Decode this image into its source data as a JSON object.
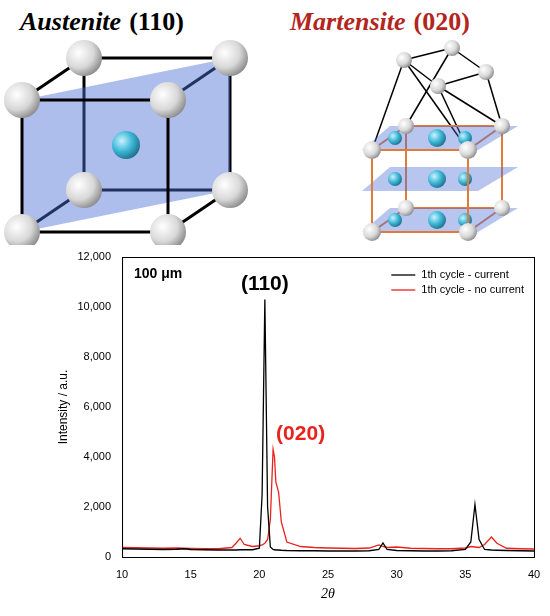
{
  "diagrams": [
    {
      "title": "Austenite",
      "plane": "(110)"
    },
    {
      "title": "Martensite",
      "plane": "(020)"
    }
  ],
  "chart_data": {
    "type": "line",
    "xlabel": "2θ",
    "ylabel": "Intensity / a.u.",
    "annotations": [
      "100 μm",
      "(110)",
      "(020)"
    ],
    "x": [
      10,
      11,
      12,
      13,
      14,
      14.5,
      15,
      16,
      17,
      18,
      18.3,
      18.6,
      18.9,
      19.5,
      20,
      20.2,
      20.4,
      20.6,
      20.8,
      21.0,
      21.1,
      21.2,
      21.4,
      21.6,
      22,
      23,
      24,
      25,
      26,
      27,
      28,
      28.7,
      29,
      29.3,
      30,
      31,
      32,
      33,
      34,
      35,
      35.4,
      35.7,
      36,
      36.4,
      36.9,
      37.3,
      38,
      39,
      40
    ],
    "series": [
      {
        "name": "1th cycle - current",
        "color": "#000000",
        "values": [
          330,
          320,
          310,
          300,
          310,
          330,
          300,
          290,
          280,
          280,
          280,
          290,
          290,
          290,
          350,
          2500,
          10300,
          2000,
          400,
          300,
          290,
          280,
          280,
          270,
          260,
          250,
          250,
          240,
          240,
          240,
          250,
          300,
          560,
          300,
          260,
          250,
          240,
          240,
          250,
          300,
          600,
          2100,
          700,
          300,
          280,
          270,
          260,
          250,
          240
        ]
      },
      {
        "name": "1th cycle - no current",
        "color": "#e8231e",
        "values": [
          380,
          370,
          360,
          350,
          360,
          350,
          340,
          330,
          330,
          380,
          550,
          750,
          500,
          420,
          450,
          480,
          550,
          700,
          1500,
          4300,
          4000,
          3000,
          2600,
          1400,
          600,
          420,
          380,
          360,
          350,
          340,
          360,
          480,
          420,
          380,
          400,
          350,
          340,
          330,
          330,
          360,
          420,
          400,
          380,
          500,
          800,
          550,
          350,
          330,
          320
        ]
      }
    ],
    "xlim": [
      10,
      40
    ],
    "xticks": [
      10,
      15,
      20,
      25,
      30,
      35,
      40
    ],
    "ylim": [
      0,
      12000
    ],
    "yticks": [
      0,
      2000,
      4000,
      6000,
      8000,
      10000,
      12000
    ],
    "grid": false,
    "legend": "top right"
  }
}
